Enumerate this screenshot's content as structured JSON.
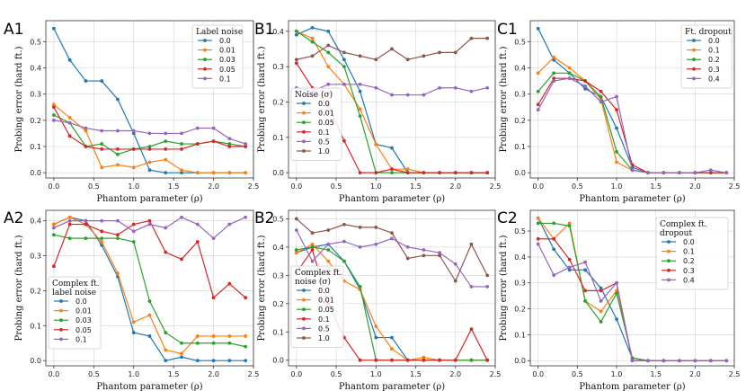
{
  "chart_data": [
    {
      "id": "A1",
      "type": "line",
      "panel_label": "A1",
      "xlabel": "Phantom parameter (ρ)",
      "ylabel": "Probing error (hard ft.)",
      "xlim": [
        -0.1,
        2.5
      ],
      "ylim": [
        -0.02,
        0.58
      ],
      "xticks": [
        0.0,
        0.5,
        1.0,
        1.5,
        2.0,
        2.5
      ],
      "xtick_labels": [
        "0.0",
        "0.5",
        "1.0",
        "1.5",
        "2.0",
        "2.5"
      ],
      "yticks": [
        0.0,
        0.1,
        0.2,
        0.3,
        0.4,
        0.5
      ],
      "ytick_labels": [
        "0.0",
        "0.1",
        "0.2",
        "0.3",
        "0.4",
        "0.5"
      ],
      "legend_title": [
        "Label noise"
      ],
      "legend_position": "top-right",
      "x": [
        0,
        0.2,
        0.4,
        0.6,
        0.8,
        1.0,
        1.2,
        1.4,
        1.6,
        1.8,
        2.0,
        2.2,
        2.4
      ],
      "series": [
        {
          "name": "0.0",
          "color": "#1f77b4",
          "values": [
            0.55,
            0.43,
            0.35,
            0.35,
            0.28,
            0.15,
            0.01,
            0.0,
            0.0,
            0.0,
            0.0,
            0.0,
            0.0
          ]
        },
        {
          "name": "0.01",
          "color": "#ff7f0e",
          "values": [
            0.26,
            0.21,
            0.16,
            0.02,
            0.03,
            0.02,
            0.04,
            0.05,
            0.01,
            0.0,
            0.0,
            0.0,
            0.0
          ]
        },
        {
          "name": "0.03",
          "color": "#2ca02c",
          "values": [
            0.22,
            0.19,
            0.1,
            0.11,
            0.07,
            0.09,
            0.1,
            0.12,
            0.11,
            0.11,
            0.12,
            0.11,
            0.1
          ]
        },
        {
          "name": "0.05",
          "color": "#d62728",
          "values": [
            0.25,
            0.14,
            0.1,
            0.09,
            0.09,
            0.09,
            0.09,
            0.09,
            0.09,
            0.11,
            0.12,
            0.1,
            0.1
          ]
        },
        {
          "name": "0.1",
          "color": "#9467bd",
          "values": [
            0.2,
            0.19,
            0.17,
            0.16,
            0.16,
            0.16,
            0.15,
            0.15,
            0.15,
            0.17,
            0.17,
            0.13,
            0.11
          ]
        }
      ]
    },
    {
      "id": "B1",
      "type": "line",
      "panel_label": "B1",
      "xlabel": "Phantom parameter (ρ)",
      "ylabel": "Probing error (hard ft.)",
      "xlim": [
        -0.1,
        2.5
      ],
      "ylim": [
        -0.015,
        0.43
      ],
      "xticks": [
        0.0,
        0.5,
        1.0,
        1.5,
        2.0,
        2.5
      ],
      "xtick_labels": [
        "0.0",
        "0.5",
        "1.0",
        "1.5",
        "2.0",
        "2.5"
      ],
      "yticks": [
        0.0,
        0.1,
        0.2,
        0.3,
        0.4
      ],
      "ytick_labels": [
        "0.0",
        "0.1",
        "0.2",
        "0.3",
        "0.4"
      ],
      "legend_title": [
        "Noise (σ)"
      ],
      "legend_position": "center-left",
      "x": [
        0,
        0.2,
        0.4,
        0.6,
        0.8,
        1.0,
        1.2,
        1.4,
        1.6,
        1.8,
        2.0,
        2.2,
        2.4
      ],
      "series": [
        {
          "name": "0.0",
          "color": "#1f77b4",
          "values": [
            0.39,
            0.41,
            0.4,
            0.32,
            0.23,
            0.08,
            0.07,
            0.0,
            0.0,
            0.0,
            0.0,
            0.0,
            0.0
          ]
        },
        {
          "name": "0.01",
          "color": "#ff7f0e",
          "values": [
            0.4,
            0.38,
            0.3,
            0.25,
            0.18,
            0.08,
            0.01,
            0.01,
            0.0,
            0.0,
            0.0,
            0.0,
            0.0
          ]
        },
        {
          "name": "0.05",
          "color": "#2ca02c",
          "values": [
            0.4,
            0.37,
            0.34,
            0.3,
            0.16,
            0.0,
            0.0,
            0.0,
            0.0,
            0.0,
            0.0,
            0.0,
            0.0
          ]
        },
        {
          "name": "0.1",
          "color": "#d62728",
          "values": [
            0.31,
            0.24,
            0.19,
            0.09,
            0.0,
            0.0,
            0.01,
            0.0,
            0.0,
            0.0,
            0.0,
            0.0,
            0.0
          ]
        },
        {
          "name": "0.5",
          "color": "#9467bd",
          "values": [
            0.24,
            0.23,
            0.25,
            0.25,
            0.25,
            0.24,
            0.22,
            0.22,
            0.22,
            0.24,
            0.24,
            0.23,
            0.24
          ]
        },
        {
          "name": "1.0",
          "color": "#8c564b",
          "values": [
            0.32,
            0.33,
            0.36,
            0.34,
            0.33,
            0.32,
            0.35,
            0.32,
            0.33,
            0.34,
            0.34,
            0.38,
            0.38
          ]
        }
      ]
    },
    {
      "id": "C1",
      "type": "line",
      "panel_label": "C1",
      "xlabel": "Phantom parameter (ρ)",
      "ylabel": "Probing error (hard ft.)",
      "xlim": [
        -0.1,
        2.5
      ],
      "ylim": [
        -0.02,
        0.58
      ],
      "xticks": [
        0.0,
        0.5,
        1.0,
        1.5,
        2.0,
        2.5
      ],
      "xtick_labels": [
        "0.0",
        "0.5",
        "1.0",
        "1.5",
        "2.0",
        "2.5"
      ],
      "yticks": [
        0.0,
        0.1,
        0.2,
        0.3,
        0.4,
        0.5
      ],
      "ytick_labels": [
        "0.0",
        "0.1",
        "0.2",
        "0.3",
        "0.4",
        "0.5"
      ],
      "legend_title": [
        "Ft. dropout"
      ],
      "legend_position": "top-right",
      "x": [
        0,
        0.2,
        0.4,
        0.6,
        0.8,
        1.0,
        1.2,
        1.4,
        1.6,
        1.8,
        2.0,
        2.2,
        2.4
      ],
      "series": [
        {
          "name": "0.0",
          "color": "#1f77b4",
          "values": [
            0.55,
            0.43,
            0.38,
            0.32,
            0.29,
            0.17,
            0.02,
            0.0,
            0.0,
            0.0,
            0.0,
            0.0,
            0.0
          ]
        },
        {
          "name": "0.1",
          "color": "#ff7f0e",
          "values": [
            0.38,
            0.44,
            0.4,
            0.35,
            0.28,
            0.04,
            0.01,
            0.0,
            0.0,
            0.0,
            0.0,
            0.0,
            0.0
          ]
        },
        {
          "name": "0.2",
          "color": "#2ca02c",
          "values": [
            0.31,
            0.38,
            0.38,
            0.35,
            0.29,
            0.08,
            0.01,
            0.0,
            0.0,
            0.0,
            0.0,
            0.0,
            0.0
          ]
        },
        {
          "name": "0.3",
          "color": "#d62728",
          "values": [
            0.26,
            0.36,
            0.36,
            0.35,
            0.31,
            0.24,
            0.03,
            0.0,
            0.0,
            0.0,
            0.0,
            0.0,
            0.0
          ]
        },
        {
          "name": "0.4",
          "color": "#9467bd",
          "values": [
            0.24,
            0.35,
            0.36,
            0.33,
            0.27,
            0.29,
            0.01,
            0.0,
            0.0,
            0.0,
            0.0,
            0.01,
            0.0
          ]
        }
      ]
    },
    {
      "id": "A2",
      "type": "line",
      "panel_label": "A2",
      "xlabel": "Phantom parameter (ρ)",
      "ylabel": "Probing error (hard ft.)",
      "xlim": [
        -0.1,
        2.5
      ],
      "ylim": [
        -0.015,
        0.43
      ],
      "xticks": [
        0.0,
        0.5,
        1.0,
        1.5,
        2.0,
        2.5
      ],
      "xtick_labels": [
        "0.0",
        "0.5",
        "1.0",
        "1.5",
        "2.0",
        "2.5"
      ],
      "yticks": [
        0.0,
        0.1,
        0.2,
        0.3,
        0.4
      ],
      "ytick_labels": [
        "0.0",
        "0.1",
        "0.2",
        "0.3",
        "0.4"
      ],
      "legend_title": [
        "Complex ft.",
        "label noise"
      ],
      "legend_position": "lower-left",
      "x": [
        0,
        0.2,
        0.4,
        0.6,
        0.8,
        1.0,
        1.2,
        1.4,
        1.6,
        1.8,
        2.0,
        2.2,
        2.4
      ],
      "series": [
        {
          "name": "0.0",
          "color": "#1f77b4",
          "values": [
            0.39,
            0.41,
            0.4,
            0.33,
            0.24,
            0.08,
            0.07,
            0.0,
            0.01,
            0.0,
            0.0,
            0.0,
            0.0
          ]
        },
        {
          "name": "0.01",
          "color": "#ff7f0e",
          "values": [
            0.39,
            0.41,
            0.39,
            0.34,
            0.25,
            0.11,
            0.13,
            0.03,
            0.02,
            0.07,
            0.07,
            0.07,
            0.07
          ]
        },
        {
          "name": "0.03",
          "color": "#2ca02c",
          "values": [
            0.36,
            0.35,
            0.35,
            0.35,
            0.35,
            0.34,
            0.17,
            0.08,
            0.05,
            0.05,
            0.05,
            0.05,
            0.04
          ]
        },
        {
          "name": "0.05",
          "color": "#d62728",
          "values": [
            0.27,
            0.39,
            0.39,
            0.37,
            0.36,
            0.39,
            0.4,
            0.31,
            0.29,
            0.34,
            0.18,
            0.22,
            0.18
          ]
        },
        {
          "name": "0.1",
          "color": "#9467bd",
          "values": [
            0.38,
            0.4,
            0.4,
            0.4,
            0.4,
            0.37,
            0.39,
            0.38,
            0.41,
            0.39,
            0.35,
            0.39,
            0.41
          ]
        }
      ]
    },
    {
      "id": "B2",
      "type": "line",
      "panel_label": "B2",
      "xlabel": "Phantom parameter (ρ)",
      "ylabel": "Probing error (hard ft.)",
      "xlim": [
        -0.1,
        2.5
      ],
      "ylim": [
        -0.02,
        0.53
      ],
      "xticks": [
        0.0,
        0.5,
        1.0,
        1.5,
        2.0,
        2.5
      ],
      "xtick_labels": [
        "0.0",
        "0.5",
        "1.0",
        "1.5",
        "2.0",
        "2.5"
      ],
      "yticks": [
        0.0,
        0.1,
        0.2,
        0.3,
        0.4,
        0.5
      ],
      "ytick_labels": [
        "0.0",
        "0.1",
        "0.2",
        "0.3",
        "0.4",
        "0.5"
      ],
      "legend_title": [
        "Complex ft.",
        "noise (σ)"
      ],
      "legend_position": "lower-left",
      "x": [
        0,
        0.2,
        0.4,
        0.6,
        0.8,
        1.0,
        1.2,
        1.4,
        1.6,
        1.8,
        2.0,
        2.2,
        2.4
      ],
      "series": [
        {
          "name": "0.0",
          "color": "#1f77b4",
          "values": [
            0.38,
            0.4,
            0.41,
            0.35,
            0.25,
            0.08,
            0.08,
            0.0,
            0.0,
            0.0,
            0.0,
            0.0,
            0.0
          ]
        },
        {
          "name": "0.01",
          "color": "#ff7f0e",
          "values": [
            0.38,
            0.41,
            0.35,
            0.28,
            0.25,
            0.12,
            0.04,
            0.0,
            0.01,
            0.0,
            0.0,
            0.0,
            0.0
          ]
        },
        {
          "name": "0.05",
          "color": "#2ca02c",
          "values": [
            0.39,
            0.4,
            0.39,
            0.35,
            0.26,
            0.0,
            0.0,
            0.0,
            0.0,
            0.0,
            0.0,
            0.0,
            0.0
          ]
        },
        {
          "name": "0.1",
          "color": "#d62728",
          "values": [
            0.31,
            0.39,
            0.2,
            0.08,
            0.0,
            0.0,
            0.0,
            0.0,
            0.0,
            0.0,
            0.0,
            0.11,
            0.0
          ]
        },
        {
          "name": "0.5",
          "color": "#9467bd",
          "values": [
            0.46,
            0.35,
            0.41,
            0.42,
            0.4,
            0.41,
            0.43,
            0.4,
            0.39,
            0.38,
            0.34,
            0.26,
            0.26
          ]
        },
        {
          "name": "1.0",
          "color": "#8c564b",
          "values": [
            0.5,
            0.45,
            0.46,
            0.48,
            0.47,
            0.47,
            0.45,
            0.36,
            0.37,
            0.37,
            0.28,
            0.41,
            0.3
          ]
        }
      ]
    },
    {
      "id": "C2",
      "type": "line",
      "panel_label": "C2",
      "xlabel": "Phantom parameter (ρ)",
      "ylabel": "Probing error (hard ft.)",
      "xlim": [
        -0.1,
        2.5
      ],
      "ylim": [
        -0.02,
        0.58
      ],
      "xticks": [
        0.0,
        0.5,
        1.0,
        1.5,
        2.0,
        2.5
      ],
      "xtick_labels": [
        "0.0",
        "0.5",
        "1.0",
        "1.5",
        "2.0",
        "2.5"
      ],
      "yticks": [
        0.0,
        0.1,
        0.2,
        0.3,
        0.4,
        0.5
      ],
      "ytick_labels": [
        "0.0",
        "0.1",
        "0.2",
        "0.3",
        "0.4",
        "0.5"
      ],
      "legend_title": [
        "Complex ft.",
        "dropout"
      ],
      "legend_position": "top-right",
      "x": [
        0,
        0.2,
        0.4,
        0.6,
        0.8,
        1.0,
        1.2,
        1.4,
        1.6,
        1.8,
        2.0,
        2.2,
        2.4
      ],
      "series": [
        {
          "name": "0.0",
          "color": "#1f77b4",
          "values": [
            0.55,
            0.43,
            0.35,
            0.35,
            0.28,
            0.16,
            0.01,
            0.0,
            0.0,
            0.0,
            0.0,
            0.0,
            0.0
          ]
        },
        {
          "name": "0.1",
          "color": "#ff7f0e",
          "values": [
            0.55,
            0.47,
            0.53,
            0.23,
            0.19,
            0.27,
            0.01,
            0.0,
            0.0,
            0.0,
            0.0,
            0.0,
            0.0
          ]
        },
        {
          "name": "0.2",
          "color": "#2ca02c",
          "values": [
            0.53,
            0.53,
            0.52,
            0.23,
            0.15,
            0.26,
            0.01,
            0.0,
            0.0,
            0.0,
            0.0,
            0.0,
            0.0
          ]
        },
        {
          "name": "0.3",
          "color": "#d62728",
          "values": [
            0.47,
            0.47,
            0.39,
            0.27,
            0.27,
            0.3,
            0.0,
            0.0,
            0.0,
            0.0,
            0.0,
            0.0,
            0.0
          ]
        },
        {
          "name": "0.4",
          "color": "#9467bd",
          "values": [
            0.45,
            0.33,
            0.36,
            0.38,
            0.23,
            0.3,
            0.0,
            0.0,
            0.0,
            0.0,
            0.0,
            0.0,
            0.0
          ]
        }
      ]
    }
  ]
}
